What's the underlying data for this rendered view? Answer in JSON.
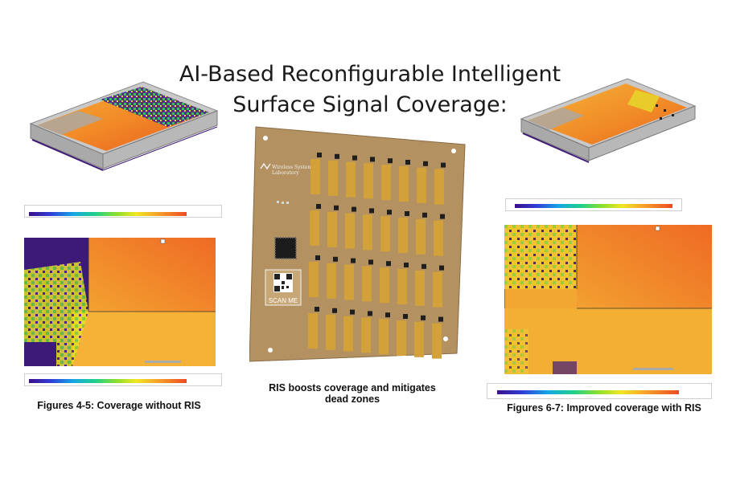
{
  "title_line1": "AI-Based Reconfigurable Intelligent",
  "title_line2": "Surface Signal Coverage:",
  "caption_left": "Figures 4-5: Coverage without RIS",
  "caption_center_line1": "RIS boosts coverage and mitigates",
  "caption_center_line2": "dead zones",
  "caption_right": "Figures 6-7: Improved coverage with RIS",
  "board": {
    "logo_line1": "Wireless Systems",
    "logo_line2": "Laboratory",
    "qr_label": "SCAN ME",
    "rows": 4,
    "cols": 8
  },
  "colors": {
    "board": "#b49160",
    "element": "#d2a13a",
    "coverage_hot": "#f08a26",
    "dead_zone": "#3d1a78"
  }
}
